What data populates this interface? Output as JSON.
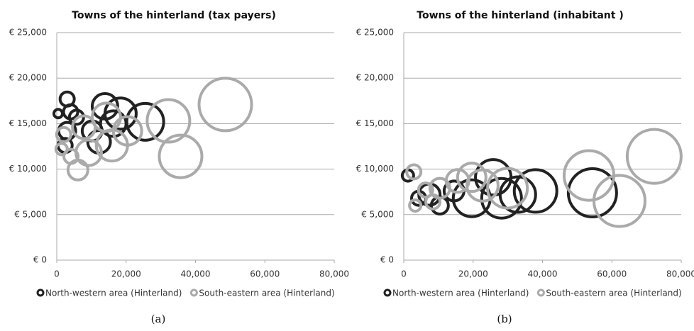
{
  "chart_data": [
    {
      "type": "bubble",
      "title": "Towns of the hinterland (tax payers)",
      "caption": "(a)",
      "xlim": [
        0,
        80000
      ],
      "xticks": [
        0,
        {
          "value": 20000,
          "label": "20,000"
        },
        {
          "value": 40000,
          "label": "40,000"
        },
        {
          "value": 60000,
          "label": "60,000"
        },
        {
          "value": 80000,
          "label": "80,000"
        }
      ],
      "ylim": [
        0,
        25000
      ],
      "yticks": [
        {
          "value": 0,
          "label": "€ 0"
        },
        {
          "value": 5000,
          "label": "€ 5,000"
        },
        {
          "value": 10000,
          "label": "€ 10,000"
        },
        {
          "value": 15000,
          "label": "€ 15,000"
        },
        {
          "value": 20000,
          "label": "€ 20,000"
        },
        {
          "value": 25000,
          "label": "€ 25,000"
        }
      ],
      "grid": true,
      "legend": "bottom",
      "series": [
        {
          "name": "North-western area (Hinterland)",
          "color": "#222222",
          "x": [
            25500,
            18400,
            13900,
            16300,
            10200,
            3000,
            4000,
            400,
            3000,
            2400,
            5700,
            12200
          ],
          "values": [
            15200,
            16100,
            16900,
            15000,
            14200,
            17700,
            16300,
            16100,
            14200,
            12600,
            15700,
            13000
          ],
          "sizes": [
            676,
            484,
            324,
            324,
            196,
            100,
            100,
            36,
            144,
            100,
            100,
            256
          ]
        },
        {
          "name": "South-eastern area (Hinterland)",
          "color": "#aaaaaa",
          "x": [
            48600,
            32200,
            35700,
            9200,
            15900,
            14300,
            6100,
            2000,
            1400,
            4100,
            20400,
            7800
          ],
          "values": [
            17100,
            15300,
            11400,
            11800,
            12600,
            15700,
            9900,
            13800,
            12200,
            11400,
            14200,
            14600
          ],
          "sizes": [
            1369,
            900,
            900,
            324,
            484,
            400,
            196,
            100,
            64,
            100,
            400,
            256
          ]
        }
      ]
    },
    {
      "type": "bubble",
      "title": "Towns of the hinterland (inhabitant )",
      "caption": "(b)",
      "xlim": [
        0,
        80000
      ],
      "xticks": [
        0,
        {
          "value": 20000,
          "label": "20,000"
        },
        {
          "value": 40000,
          "label": "40,000"
        },
        {
          "value": 60000,
          "label": "60,000"
        },
        {
          "value": 80000,
          "label": "80,000"
        }
      ],
      "ylim": [
        0,
        25000
      ],
      "yticks": [
        {
          "value": 0,
          "label": "€ 0"
        },
        {
          "value": 5000,
          "label": "€ 5,000"
        },
        {
          "value": 10000,
          "label": "€ 10,000"
        },
        {
          "value": 15000,
          "label": "€ 15,000"
        },
        {
          "value": 20000,
          "label": "€ 20,000"
        },
        {
          "value": 25000,
          "label": "€ 25,000"
        }
      ],
      "grid": true,
      "legend": "bottom",
      "series": [
        {
          "name": "North-western area (Hinterland)",
          "color": "#222222",
          "x": [
            54400,
            38000,
            28200,
            19600,
            25800,
            32900,
            7400,
            10400,
            4300,
            1200,
            14500
          ],
          "values": [
            7400,
            7600,
            6800,
            6800,
            9100,
            7200,
            7200,
            6000,
            6800,
            9300,
            7600
          ],
          "sizes": [
            1156,
            900,
            784,
            676,
            625,
            625,
            225,
            144,
            100,
            64,
            196
          ]
        },
        {
          "name": "South-eastern area (Hinterland)",
          "color": "#aaaaaa",
          "x": [
            72200,
            62200,
            53400,
            29900,
            22700,
            19600,
            10400,
            8400,
            2900,
            3300,
            6300,
            15500
          ],
          "values": [
            11400,
            6500,
            9300,
            7900,
            8200,
            9100,
            7900,
            6400,
            9700,
            6000,
            7700,
            8700
          ],
          "sizes": [
            1444,
            1296,
            1225,
            784,
            484,
            400,
            196,
            100,
            100,
            64,
            100,
            256
          ]
        }
      ]
    }
  ]
}
